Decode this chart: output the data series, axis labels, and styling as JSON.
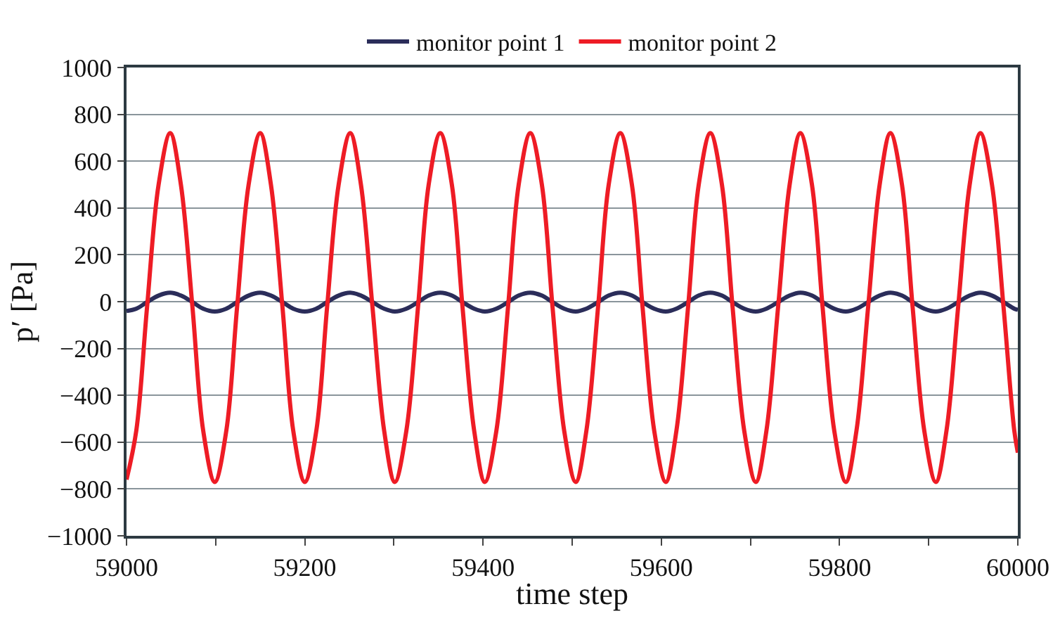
{
  "chart_data": {
    "type": "line",
    "xlabel": "time step",
    "ylabel": "p′ [Pa]",
    "x": [
      59000,
      59011,
      59023,
      59036,
      59049,
      59061,
      59074,
      59086,
      59099,
      59112,
      59124,
      59137,
      59150,
      59162,
      59175,
      59187,
      59200,
      59213,
      59225,
      59238,
      59251,
      59263,
      59276,
      59289,
      59301,
      59314,
      59327,
      59339,
      59352,
      59365,
      59377,
      59390,
      59402,
      59415,
      59428,
      59440,
      59453,
      59466,
      59478,
      59491,
      59504,
      59516,
      59529,
      59541,
      59554,
      59567,
      59579,
      59592,
      59605,
      59617,
      59630,
      59642,
      59655,
      59668,
      59680,
      59693,
      59706,
      59718,
      59731,
      59744,
      59756,
      59769,
      59781,
      59794,
      59807,
      59819,
      59832,
      59845,
      59857,
      59870,
      59882,
      59895,
      59908,
      59920,
      59933,
      59946,
      59958,
      59971,
      59984,
      59996,
      60000
    ],
    "series": [
      {
        "name": "monitor point 1",
        "color": "#2b2d5a",
        "values": [
          -40,
          -30,
          -2,
          26,
          38,
          26,
          -2,
          -30,
          -42,
          -30,
          -2,
          26,
          38,
          26,
          -2,
          -30,
          -42,
          -30,
          -2,
          26,
          38,
          26,
          -2,
          -30,
          -42,
          -30,
          -2,
          26,
          38,
          26,
          -2,
          -30,
          -42,
          -30,
          -2,
          26,
          38,
          26,
          -2,
          -30,
          -42,
          -30,
          -2,
          26,
          38,
          26,
          -2,
          -30,
          -42,
          -30,
          -2,
          26,
          38,
          26,
          -2,
          -30,
          -42,
          -30,
          -2,
          26,
          38,
          26,
          -2,
          -30,
          -42,
          -30,
          -2,
          26,
          38,
          26,
          -2,
          -30,
          -42,
          -30,
          -2,
          26,
          38,
          26,
          -2,
          -30,
          -35
        ]
      },
      {
        "name": "monitor point 2",
        "color": "#ee1c25",
        "values": [
          -760,
          -550,
          -25,
          500,
          720,
          500,
          -25,
          -550,
          -770,
          -550,
          -25,
          500,
          720,
          500,
          -25,
          -550,
          -770,
          -550,
          -25,
          500,
          720,
          500,
          -25,
          -550,
          -770,
          -550,
          -25,
          500,
          720,
          500,
          -25,
          -550,
          -770,
          -550,
          -25,
          500,
          720,
          500,
          -25,
          -550,
          -770,
          -550,
          -25,
          500,
          720,
          500,
          -25,
          -550,
          -770,
          -550,
          -25,
          500,
          720,
          500,
          -25,
          -550,
          -770,
          -550,
          -25,
          500,
          720,
          500,
          -25,
          -550,
          -770,
          -550,
          -25,
          500,
          720,
          500,
          -25,
          -550,
          -770,
          -550,
          -25,
          500,
          720,
          500,
          -25,
          -550,
          -645
        ]
      }
    ],
    "xlim": [
      59000,
      60000
    ],
    "xticks": [
      59000,
      {
        "value": 59100,
        "label": null
      },
      59200,
      {
        "value": 59300,
        "label": null
      },
      59400,
      {
        "value": 59500,
        "label": null
      },
      59600,
      {
        "value": 59700,
        "label": null
      },
      59800,
      {
        "value": 59900,
        "label": null
      },
      60000
    ],
    "ylim": [
      -1000,
      1000
    ],
    "yticks": [
      -1000,
      -800,
      -600,
      -400,
      -200,
      0,
      200,
      400,
      600,
      800,
      1000
    ],
    "grid": "y",
    "legend": "top",
    "line_style": "solid",
    "marker": "none"
  }
}
